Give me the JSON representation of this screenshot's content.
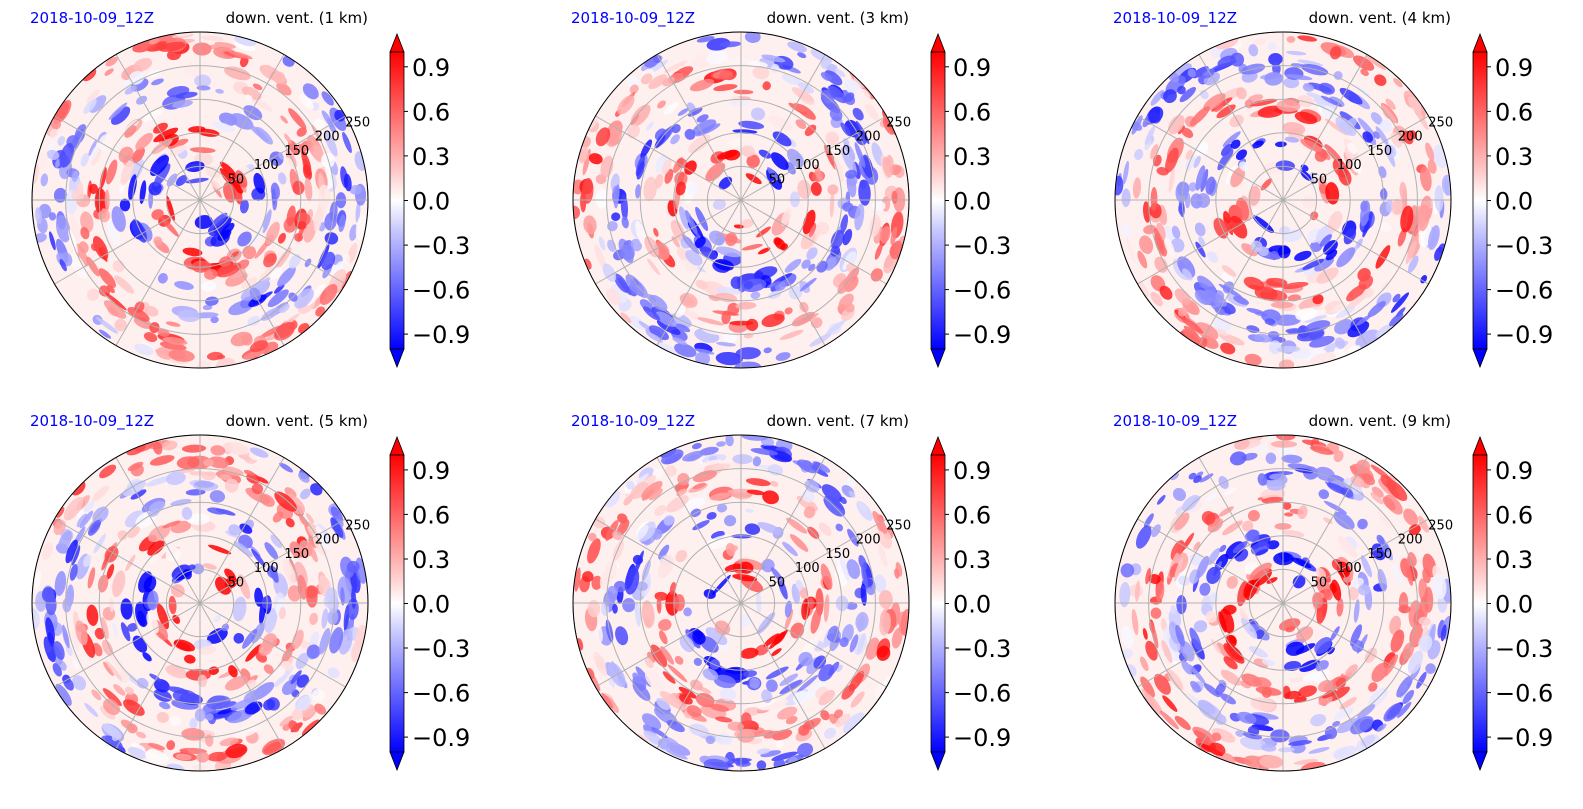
{
  "chart_data": [
    {
      "type": "heatmap",
      "date": "2018-10-09_12Z",
      "title": "down. vent. (1 km)",
      "ring_labels": [
        "50",
        "100",
        "150",
        "200",
        "250"
      ],
      "color_scale": {
        "min": -1.0,
        "max": 1.0,
        "ticks": [
          "0.9",
          "0.6",
          "0.3",
          "0.0",
          "−0.3",
          "−0.6",
          "−0.9"
        ],
        "colormap": "bwr",
        "extend": "both"
      }
    },
    {
      "type": "heatmap",
      "date": "2018-10-09_12Z",
      "title": "down. vent. (3 km)",
      "ring_labels": [
        "50",
        "100",
        "150",
        "200",
        "250"
      ],
      "color_scale": {
        "min": -1.0,
        "max": 1.0,
        "ticks": [
          "0.9",
          "0.6",
          "0.3",
          "0.0",
          "−0.3",
          "−0.6",
          "−0.9"
        ],
        "colormap": "bwr",
        "extend": "both"
      }
    },
    {
      "type": "heatmap",
      "date": "2018-10-09_12Z",
      "title": "down. vent. (4 km)",
      "ring_labels": [
        "50",
        "100",
        "150",
        "200",
        "250"
      ],
      "color_scale": {
        "min": -1.0,
        "max": 1.0,
        "ticks": [
          "0.9",
          "0.6",
          "0.3",
          "0.0",
          "−0.3",
          "−0.6",
          "−0.9"
        ],
        "colormap": "bwr",
        "extend": "both"
      }
    },
    {
      "type": "heatmap",
      "date": "2018-10-09_12Z",
      "title": "down. vent. (5 km)",
      "ring_labels": [
        "50",
        "100",
        "150",
        "200",
        "250"
      ],
      "color_scale": {
        "min": -1.0,
        "max": 1.0,
        "ticks": [
          "0.9",
          "0.6",
          "0.3",
          "0.0",
          "−0.3",
          "−0.6",
          "−0.9"
        ],
        "colormap": "bwr",
        "extend": "both"
      }
    },
    {
      "type": "heatmap",
      "date": "2018-10-09_12Z",
      "title": "down. vent. (7 km)",
      "ring_labels": [
        "50",
        "100",
        "150",
        "200",
        "250"
      ],
      "color_scale": {
        "min": -1.0,
        "max": 1.0,
        "ticks": [
          "0.9",
          "0.6",
          "0.3",
          "0.0",
          "−0.3",
          "−0.6",
          "−0.9"
        ],
        "colormap": "bwr",
        "extend": "both"
      }
    },
    {
      "type": "heatmap",
      "date": "2018-10-09_12Z",
      "title": "down. vent. (9 km)",
      "ring_labels": [
        "50",
        "100",
        "150",
        "200",
        "250"
      ],
      "color_scale": {
        "min": -1.0,
        "max": 1.0,
        "ticks": [
          "0.9",
          "0.6",
          "0.3",
          "0.0",
          "−0.3",
          "−0.6",
          "−0.9"
        ],
        "colormap": "bwr",
        "extend": "both"
      }
    }
  ],
  "colors": {
    "positive": "#ff0000",
    "negative": "#0000ff",
    "neutral": "#ffffff",
    "date_text": "#0000ff",
    "grid": "#b0b0b0"
  }
}
